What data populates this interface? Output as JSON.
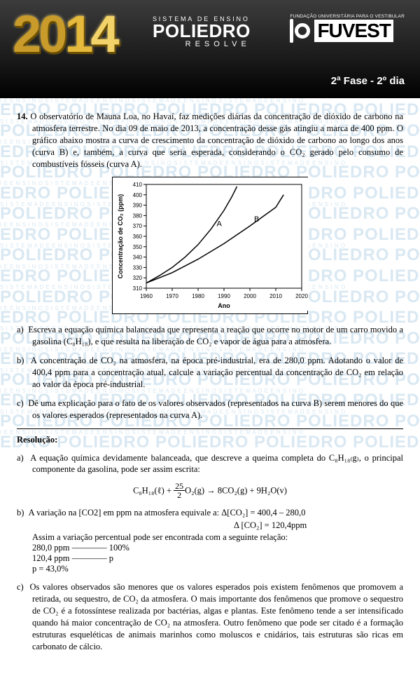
{
  "header": {
    "year": "2014",
    "poliedro_sys": "SISTEMA DE ENSINO",
    "poliedro_name": "POLIEDRO",
    "poliedro_resolve": "RESOLVE",
    "fuvest_fund": "FUNDAÇÃO UNIVERSITÁRIA PARA O VESTIBULAR",
    "fuvest": "FUVEST",
    "fase": "2ª Fase - 2º dia"
  },
  "question": {
    "number": "14.",
    "text": "O observatório de Mauna Loa, no Havaí, faz medições diárias da concentração de dióxido de carbono na atmosfera terrestre. No dia 09 de maio de 2013, a concentração desse gás atingiu a marca de 400 ppm. O gráfico abaixo mostra a curva de crescimento da concentração de dióxido de carbono ao longo dos anos (curva B) e, também, a curva que seria esperada, considerando o CO₂ gerado pelo consumo de combustíveis fósseis (curva A)."
  },
  "chart": {
    "type": "line",
    "xlabel": "Ano",
    "ylabel": "Concentração de CO₂ (ppm)",
    "xlim": [
      1960,
      2020
    ],
    "ylim": [
      310,
      410
    ],
    "xticks": [
      1960,
      1970,
      1980,
      1990,
      2000,
      2010,
      2020
    ],
    "yticks": [
      310,
      320,
      330,
      340,
      350,
      360,
      370,
      380,
      390,
      400,
      410
    ],
    "background_color": "#ffffff",
    "axis_color": "#000000",
    "label_fontsize": 9,
    "tick_fontsize": 8,
    "line_width": 1.5,
    "series": {
      "A": {
        "label": "A",
        "color": "#000000",
        "points": [
          [
            1960,
            315
          ],
          [
            1965,
            322
          ],
          [
            1970,
            330
          ],
          [
            1975,
            340
          ],
          [
            1980,
            352
          ],
          [
            1985,
            367
          ],
          [
            1990,
            385
          ],
          [
            1993,
            398
          ],
          [
            1995,
            408
          ]
        ]
      },
      "B": {
        "label": "B",
        "color": "#000000",
        "points": [
          [
            1960,
            315
          ],
          [
            1970,
            325
          ],
          [
            1980,
            338
          ],
          [
            1990,
            353
          ],
          [
            2000,
            370
          ],
          [
            2010,
            388
          ],
          [
            2013,
            400
          ]
        ]
      }
    }
  },
  "items": {
    "a": "Escreva a equação química balanceada que representa a reação que ocorre no motor de um carro movido a gasolina (C₈H₁₈), e que resulta na liberação de CO₂ e vapor de água para a atmosfera.",
    "b": "A concentração de CO₂ na atmosfera, na época pré-industrial, era de 280,0 ppm. Adotando o valor de 400,4 ppm para a concentração atual, calcule a variação percentual da concentração de CO₂ em relação ao valor da época pré-industrial.",
    "c": "Dê uma explicação para o fato de os valores observados (representados na curva B) serem menores do que os valores esperados (representados na curva A)."
  },
  "resolution": {
    "title": "Resolução:",
    "a_text": "A equação química devidamente balanceada, que descreve a queima completa do C₈H₁₈₍g₎, o principal componente da gasolina, pode ser assim escrita:",
    "a_eq_lhs1": "C₈H₁₈(ℓ) + ",
    "a_eq_frac_n": "25",
    "a_eq_frac_d": "2",
    "a_eq_lhs2": "O₂(g) → 8CO₂(g) + 9H₂O(v)",
    "b_l1": "A variação na [CO2] em ppm na atmosfera equivale a:  Δ[CO₂] =  400,4 – 280,0",
    "b_l1b": "Δ [CO₂] = 120,4ppm",
    "b_l2": "Assim a variação percentual pode ser encontrada com a seguinte relação:",
    "b_l3": "280,0 ppm ———— 100%",
    "b_l4": "120,4 ppm ———— p",
    "b_l5": "p = 43,0%",
    "c_text": "Os valores observados são menores que os valores esperados pois existem fenômenos que promovem a retirada, ou sequestro, de CO₂ da atmosfera. O mais importante dos fenômenos que promove o sequestro de CO₂ é a fotossíntese realizada por bactérias, algas e plantas. Este fenômeno tende a ser intensificado quando há maior concentração de CO₂ na atmosfera. Outro fenômeno que pode ser citado é a formação estruturas esqueléticas de animais marinhos como moluscos e cnidários, tais estruturas são ricas em carbonato de cálcio."
  },
  "watermark": {
    "sub": "S I S T E M A   D E   E N S I N O",
    "main": "POLIEDRO"
  }
}
